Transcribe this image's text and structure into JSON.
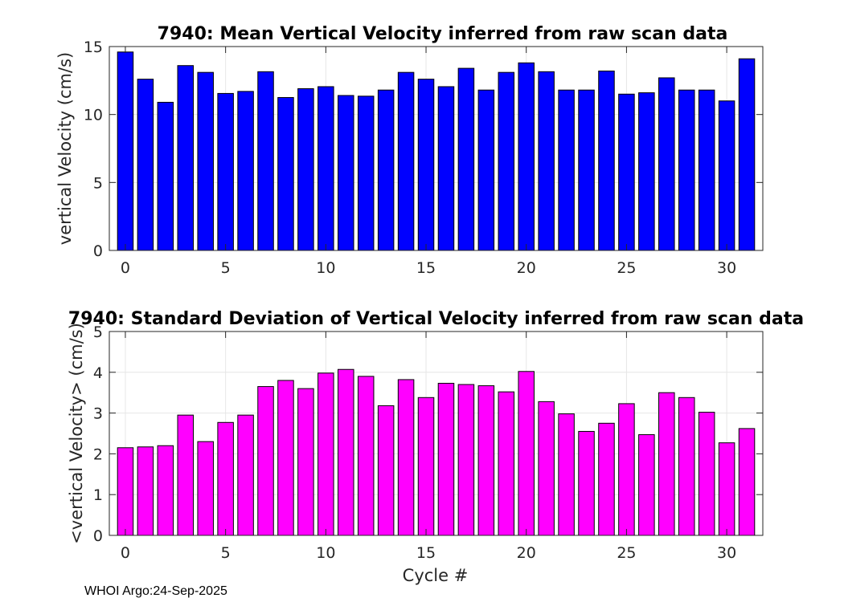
{
  "chart_data": [
    {
      "type": "bar",
      "title": "7940: Mean Vertical Velocity inferred from raw scan data",
      "xlabel": "",
      "ylabel": "vertical Velocity (cm/s)",
      "ylim": [
        0,
        15
      ],
      "xlim": [
        -0.8,
        31.8
      ],
      "yticks": [
        0,
        5,
        10,
        15
      ],
      "xticks": [
        0,
        5,
        10,
        15,
        20,
        25,
        30
      ],
      "grid": true,
      "color": "#0000ff",
      "x": [
        0,
        1,
        2,
        3,
        4,
        5,
        6,
        7,
        8,
        9,
        10,
        11,
        12,
        13,
        14,
        15,
        16,
        17,
        18,
        19,
        20,
        21,
        22,
        23,
        24,
        25,
        26,
        27,
        28,
        29,
        30,
        31
      ],
      "values": [
        14.6,
        12.6,
        10.9,
        13.6,
        13.1,
        11.55,
        11.7,
        13.15,
        11.25,
        11.9,
        12.05,
        11.4,
        11.35,
        11.8,
        13.1,
        12.6,
        12.05,
        13.4,
        11.8,
        13.1,
        13.8,
        13.15,
        11.8,
        11.8,
        13.2,
        11.5,
        11.6,
        12.7,
        11.8,
        11.8,
        11.0,
        14.1
      ]
    },
    {
      "type": "bar",
      "title": "7940: Standard Deviation of Vertical Velocity inferred from raw scan data",
      "xlabel": "Cycle #",
      "ylabel": "<vertical Velocity> (cm/s)",
      "ylim": [
        0,
        5
      ],
      "xlim": [
        -0.8,
        31.8
      ],
      "yticks": [
        0,
        1,
        2,
        3,
        4,
        5
      ],
      "xticks": [
        0,
        5,
        10,
        15,
        20,
        25,
        30
      ],
      "grid": true,
      "color": "#ff00ff",
      "x": [
        0,
        1,
        2,
        3,
        4,
        5,
        6,
        7,
        8,
        9,
        10,
        11,
        12,
        13,
        14,
        15,
        16,
        17,
        18,
        19,
        20,
        21,
        22,
        23,
        24,
        25,
        26,
        27,
        28,
        29,
        30,
        31
      ],
      "values": [
        2.15,
        2.17,
        2.2,
        2.95,
        2.3,
        2.77,
        2.95,
        3.65,
        3.8,
        3.6,
        3.98,
        4.07,
        3.9,
        3.18,
        3.82,
        3.38,
        3.73,
        3.7,
        3.67,
        3.52,
        4.02,
        3.28,
        2.98,
        2.55,
        2.75,
        3.23,
        2.47,
        3.5,
        3.38,
        3.02,
        2.27,
        2.62
      ]
    }
  ],
  "footer": "WHOI Argo:24-Sep-2025"
}
